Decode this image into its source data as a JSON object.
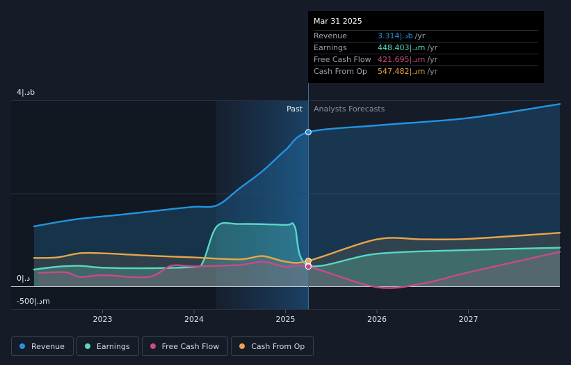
{
  "chart_data": {
    "type": "line",
    "x_ticks": [
      "2023",
      "2024",
      "2025",
      "2026",
      "2027"
    ],
    "y_tick_labels": {
      "top": "4|.ﺩb",
      "zero": "0|.ﺩ",
      "bottom": "-500|.ﺩm"
    },
    "ylim_millions": [
      -500,
      4000
    ],
    "divider_labels": {
      "past": "Past",
      "forecast": "Analysts Forecasts"
    },
    "series": [
      {
        "name": "Revenue",
        "color": "#2394df",
        "points": [
          [
            2022.25,
            1290
          ],
          [
            2022.7,
            1440
          ],
          [
            2023.2,
            1540
          ],
          [
            2023.7,
            1650
          ],
          [
            2024.0,
            1710
          ],
          [
            2024.25,
            1740
          ],
          [
            2024.5,
            2110
          ],
          [
            2024.75,
            2480
          ],
          [
            2025.0,
            2930
          ],
          [
            2025.25,
            3314
          ],
          [
            2026.0,
            3460
          ],
          [
            2027.0,
            3620
          ],
          [
            2028.0,
            3920
          ]
        ]
      },
      {
        "name": "Earnings",
        "color": "#57d8c4",
        "points": [
          [
            2022.25,
            360
          ],
          [
            2022.5,
            420
          ],
          [
            2022.75,
            440
          ],
          [
            2023.0,
            400
          ],
          [
            2023.5,
            390
          ],
          [
            2024.0,
            420
          ],
          [
            2024.1,
            530
          ],
          [
            2024.25,
            1290
          ],
          [
            2024.5,
            1340
          ],
          [
            2025.0,
            1320
          ],
          [
            2025.1,
            1290
          ],
          [
            2025.25,
            448
          ],
          [
            2026.0,
            700
          ],
          [
            2027.0,
            780
          ],
          [
            2028.0,
            830
          ]
        ]
      },
      {
        "name": "Free Cash Flow",
        "color": "#c94a8a",
        "points": [
          [
            2022.3,
            290
          ],
          [
            2022.6,
            300
          ],
          [
            2022.75,
            200
          ],
          [
            2023.0,
            240
          ],
          [
            2023.5,
            200
          ],
          [
            2023.75,
            440
          ],
          [
            2024.0,
            430
          ],
          [
            2024.5,
            460
          ],
          [
            2024.75,
            530
          ],
          [
            2025.0,
            420
          ],
          [
            2025.25,
            422
          ],
          [
            2026.0,
            -20
          ],
          [
            2026.5,
            60
          ],
          [
            2027.0,
            300
          ],
          [
            2028.0,
            740
          ]
        ]
      },
      {
        "name": "Cash From Op",
        "color": "#e8a54b",
        "points": [
          [
            2022.25,
            610
          ],
          [
            2022.5,
            620
          ],
          [
            2022.75,
            710
          ],
          [
            2023.0,
            710
          ],
          [
            2023.5,
            660
          ],
          [
            2024.0,
            620
          ],
          [
            2024.5,
            580
          ],
          [
            2024.75,
            650
          ],
          [
            2025.0,
            530
          ],
          [
            2025.25,
            547
          ],
          [
            2026.0,
            1010
          ],
          [
            2026.5,
            1010
          ],
          [
            2027.0,
            1020
          ],
          [
            2028.0,
            1150
          ]
        ]
      }
    ],
    "legend_position": "bottom-left"
  },
  "tooltip": {
    "date": "Mar 31 2025",
    "rows": [
      {
        "label": "Revenue",
        "value": "3.314|.ﺩb",
        "unit": "/yr",
        "color": "#2394df"
      },
      {
        "label": "Earnings",
        "value": "448.403|.ﺩm",
        "unit": "/yr",
        "color": "#57d8c4"
      },
      {
        "label": "Free Cash Flow",
        "value": "421.695|.ﺩm",
        "unit": "/yr",
        "color": "#c94a8a"
      },
      {
        "label": "Cash From Op",
        "value": "547.482|.ﺩm",
        "unit": "/yr",
        "color": "#e8a54b"
      }
    ]
  },
  "legend": [
    {
      "label": "Revenue",
      "color": "#2394df"
    },
    {
      "label": "Earnings",
      "color": "#57d8c4"
    },
    {
      "label": "Free Cash Flow",
      "color": "#c94a8a"
    },
    {
      "label": "Cash From Op",
      "color": "#e8a54b"
    }
  ]
}
